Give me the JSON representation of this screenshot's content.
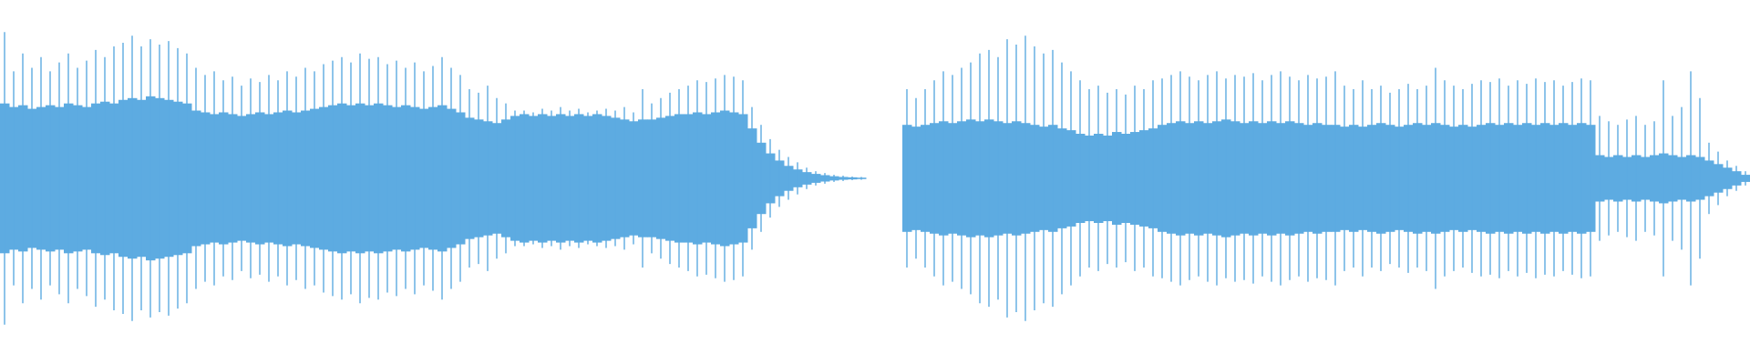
{
  "chart_data": {
    "type": "waveform",
    "color": "#5dabe1",
    "ylim": [
      0,
      1
    ],
    "peak": [
      0.82,
      0.6,
      0.7,
      0.62,
      0.68,
      0.6,
      0.65,
      0.7,
      0.62,
      0.66,
      0.72,
      0.68,
      0.74,
      0.76,
      0.8,
      0.74,
      0.78,
      0.75,
      0.77,
      0.73,
      0.7,
      0.62,
      0.58,
      0.6,
      0.55,
      0.57,
      0.52,
      0.56,
      0.54,
      0.58,
      0.55,
      0.6,
      0.57,
      0.62,
      0.6,
      0.64,
      0.66,
      0.68,
      0.65,
      0.7,
      0.67,
      0.68,
      0.64,
      0.66,
      0.62,
      0.65,
      0.6,
      0.63,
      0.68,
      0.62,
      0.58,
      0.5,
      0.48,
      0.52,
      0.45,
      0.42,
      0.38,
      0.38,
      0.37,
      0.39,
      0.38,
      0.4,
      0.38,
      0.39,
      0.37,
      0.38,
      0.39,
      0.38,
      0.4,
      0.37,
      0.5,
      0.42,
      0.45,
      0.48,
      0.5,
      0.52,
      0.55,
      0.54,
      0.56,
      0.58,
      0.57,
      0.55,
      0.4,
      0.3,
      0.22,
      0.16,
      0.12,
      0.09,
      0.06,
      0.04,
      0.03,
      0.02,
      0.015,
      0.01,
      0.008,
      null,
      null,
      null,
      null,
      0.5,
      0.45,
      0.5,
      0.55,
      0.6,
      0.58,
      0.62,
      0.65,
      0.7,
      0.72,
      0.68,
      0.78,
      0.75,
      0.8,
      0.74,
      0.7,
      0.72,
      0.65,
      0.6,
      0.55,
      0.5,
      0.52,
      0.48,
      0.5,
      0.47,
      0.52,
      0.5,
      0.55,
      0.56,
      0.58,
      0.6,
      0.57,
      0.55,
      0.58,
      0.6,
      0.56,
      0.58,
      0.57,
      0.59,
      0.55,
      0.58,
      0.6,
      0.57,
      0.55,
      0.58,
      0.56,
      0.57,
      0.6,
      0.52,
      0.5,
      0.55,
      0.5,
      0.52,
      0.48,
      0.5,
      0.53,
      0.5,
      0.52,
      0.62,
      0.55,
      0.52,
      0.5,
      0.53,
      0.55,
      0.54,
      0.56,
      0.52,
      0.55,
      0.53,
      0.56,
      0.54,
      0.55,
      0.52,
      0.54,
      0.56,
      0.55,
      0.35,
      0.32,
      0.3,
      0.33,
      0.35,
      0.3,
      0.32,
      0.55,
      0.35,
      0.4,
      0.6,
      0.45,
      0.2,
      0.15,
      0.1,
      0.07,
      0.04
    ],
    "rms": [
      0.42,
      0.4,
      0.41,
      0.39,
      0.4,
      0.41,
      0.4,
      0.42,
      0.41,
      0.4,
      0.42,
      0.43,
      0.42,
      0.44,
      0.45,
      0.44,
      0.46,
      0.45,
      0.44,
      0.43,
      0.42,
      0.38,
      0.37,
      0.36,
      0.37,
      0.36,
      0.35,
      0.36,
      0.37,
      0.36,
      0.37,
      0.38,
      0.37,
      0.38,
      0.39,
      0.4,
      0.41,
      0.42,
      0.41,
      0.42,
      0.41,
      0.42,
      0.41,
      0.4,
      0.41,
      0.4,
      0.39,
      0.4,
      0.41,
      0.39,
      0.37,
      0.34,
      0.33,
      0.32,
      0.31,
      0.33,
      0.35,
      0.36,
      0.35,
      0.36,
      0.35,
      0.36,
      0.35,
      0.36,
      0.35,
      0.36,
      0.35,
      0.34,
      0.33,
      0.32,
      0.33,
      0.33,
      0.34,
      0.35,
      0.36,
      0.36,
      0.37,
      0.36,
      0.37,
      0.38,
      0.37,
      0.36,
      0.28,
      0.2,
      0.14,
      0.1,
      0.07,
      0.05,
      0.035,
      0.025,
      0.018,
      0.012,
      0.008,
      0.006,
      0.004,
      null,
      null,
      null,
      null,
      0.3,
      0.29,
      0.3,
      0.31,
      0.32,
      0.31,
      0.32,
      0.33,
      0.32,
      0.33,
      0.32,
      0.31,
      0.32,
      0.31,
      0.3,
      0.29,
      0.3,
      0.28,
      0.27,
      0.25,
      0.24,
      0.25,
      0.24,
      0.26,
      0.25,
      0.26,
      0.27,
      0.28,
      0.3,
      0.31,
      0.32,
      0.31,
      0.32,
      0.31,
      0.32,
      0.33,
      0.32,
      0.31,
      0.32,
      0.31,
      0.32,
      0.31,
      0.32,
      0.31,
      0.3,
      0.31,
      0.3,
      0.3,
      0.29,
      0.3,
      0.29,
      0.3,
      0.31,
      0.3,
      0.29,
      0.3,
      0.31,
      0.3,
      0.31,
      0.3,
      0.29,
      0.3,
      0.29,
      0.3,
      0.31,
      0.3,
      0.31,
      0.3,
      0.31,
      0.3,
      0.31,
      0.3,
      0.31,
      0.3,
      0.31,
      0.3,
      0.13,
      0.12,
      0.13,
      0.12,
      0.13,
      0.12,
      0.13,
      0.14,
      0.13,
      0.12,
      0.13,
      0.12,
      0.1,
      0.08,
      0.06,
      0.04,
      0.02
    ]
  }
}
